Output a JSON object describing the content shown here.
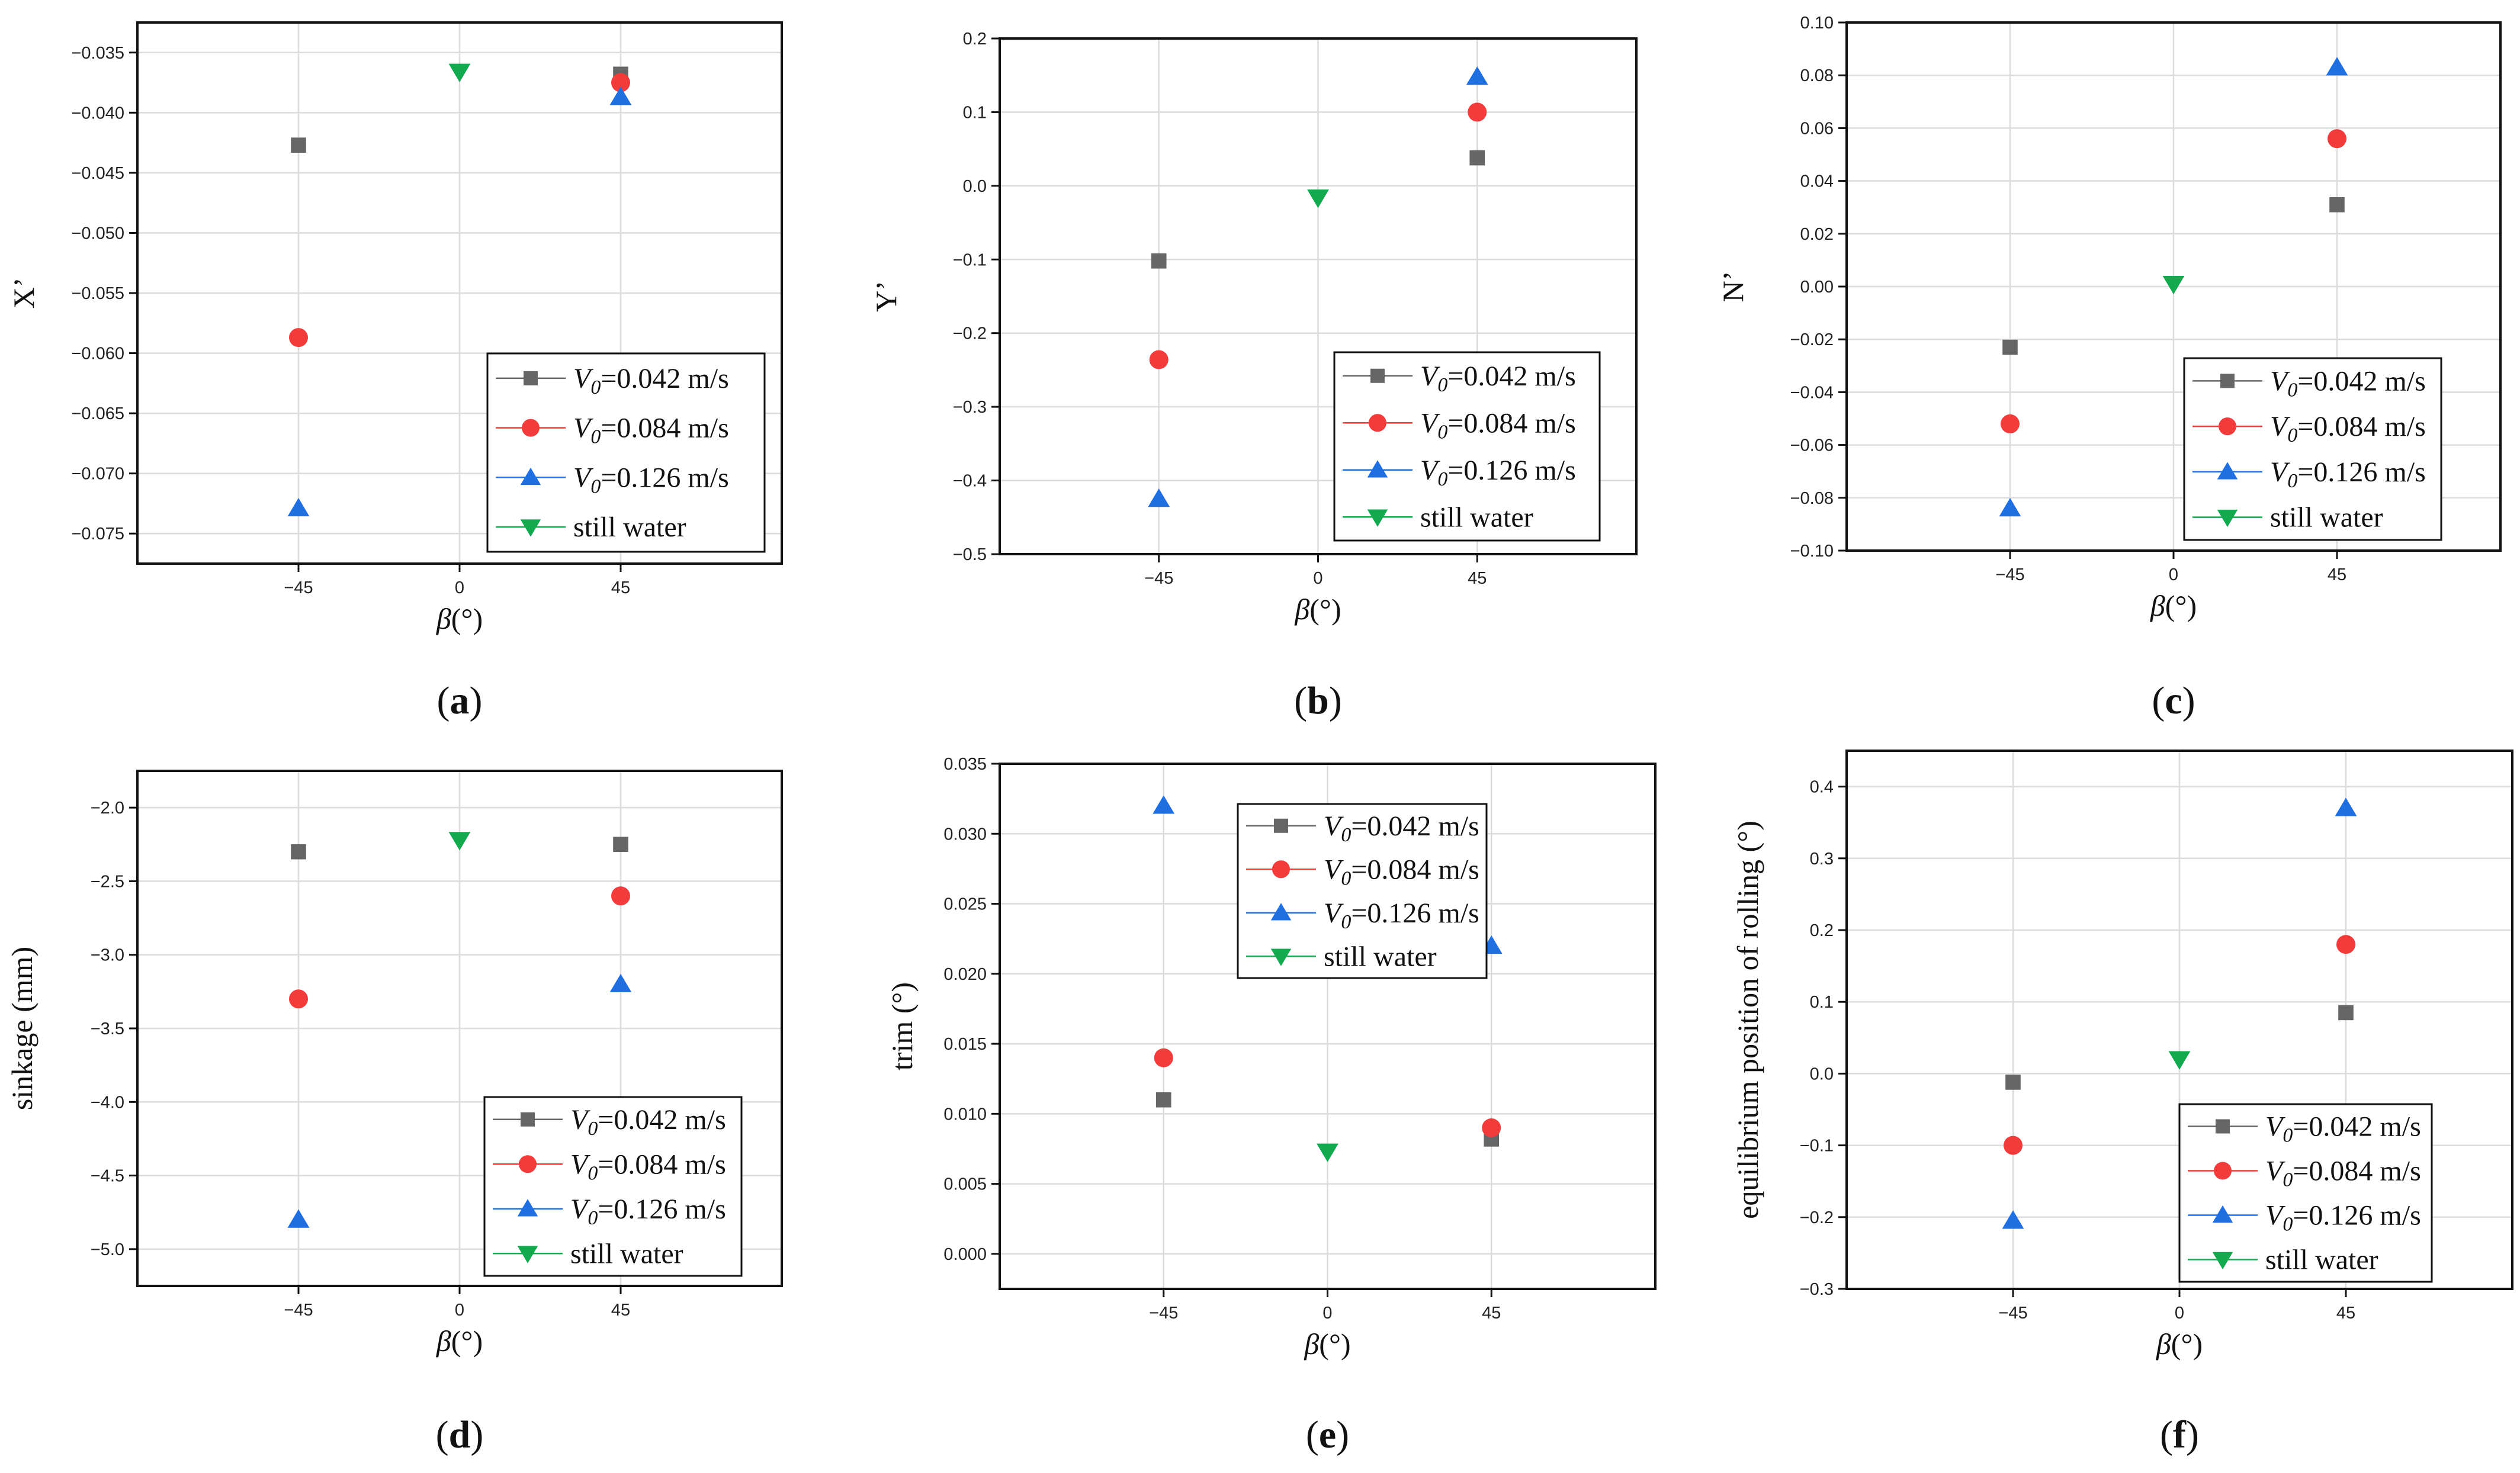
{
  "figure": {
    "beta_symbol": "β",
    "beta_unit": "(°)",
    "legend_v_symbol": "V",
    "legend_v_subscript": "0",
    "series_styles": [
      {
        "marker": "square",
        "color": "#666666"
      },
      {
        "marker": "circle",
        "color": "#f23b3b"
      },
      {
        "marker": "triangle-up",
        "color": "#1f6fe0"
      },
      {
        "marker": "triangle-down",
        "color": "#12a94f"
      }
    ],
    "grid_color": "#dcdcdc"
  },
  "chart_data": [
    {
      "panel": "(a)",
      "panel_letter": "a",
      "type": "scatter",
      "ylabel": "X’",
      "xlabel": "β(°)",
      "x": [
        -45,
        0,
        45
      ],
      "xlim": [
        -90,
        90
      ],
      "ylim": [
        -0.0775,
        -0.0325
      ],
      "yticks": [
        -0.035,
        -0.04,
        -0.045,
        -0.05,
        -0.055,
        -0.06,
        -0.065,
        -0.07,
        -0.075
      ],
      "ytick_labels": [
        "−0.035",
        "−0.040",
        "−0.045",
        "−0.050",
        "−0.055",
        "−0.060",
        "−0.065",
        "−0.070",
        "−0.075"
      ],
      "xtick_labels": [
        "−45",
        "0",
        "45"
      ],
      "legend_position": "bottom-right",
      "series": [
        {
          "name": "V0=0.042 m/s",
          "legend_value": "=0.042 m/s",
          "points": [
            [
              -45,
              -0.0427
            ],
            [
              45,
              -0.0368
            ]
          ]
        },
        {
          "name": "V0=0.084 m/s",
          "legend_value": "=0.084 m/s",
          "points": [
            [
              -45,
              -0.0587
            ],
            [
              45,
              -0.0375
            ]
          ]
        },
        {
          "name": "V0=0.126 m/s",
          "legend_value": "=0.126 m/s",
          "points": [
            [
              -45,
              -0.0729
            ],
            [
              45,
              -0.0387
            ]
          ]
        },
        {
          "name": "still water",
          "legend_value": "still water",
          "points": [
            [
              0,
              -0.0366
            ]
          ]
        }
      ]
    },
    {
      "panel": "(b)",
      "panel_letter": "b",
      "type": "scatter",
      "ylabel": "Y’",
      "xlabel": "β(°)",
      "x": [
        -45,
        0,
        45
      ],
      "xlim": [
        -90,
        90
      ],
      "ylim": [
        -0.5,
        0.2
      ],
      "yticks": [
        0.2,
        0.1,
        0,
        -0.1,
        -0.2,
        -0.3,
        -0.4,
        -0.5
      ],
      "ytick_labels": [
        "0.2",
        "0.1",
        "0.0",
        "−0.1",
        "−0.2",
        "−0.3",
        "−0.4",
        "−0.5"
      ],
      "xtick_labels": [
        "−45",
        "0",
        "45"
      ],
      "legend_position": "bottom-right",
      "series": [
        {
          "name": "V0=0.042 m/s",
          "legend_value": "=0.042 m/s",
          "points": [
            [
              -45,
              -0.102
            ],
            [
              45,
              0.038
            ]
          ]
        },
        {
          "name": "V0=0.084 m/s",
          "legend_value": "=0.084 m/s",
          "points": [
            [
              -45,
              -0.236
            ],
            [
              45,
              0.1
            ]
          ]
        },
        {
          "name": "V0=0.126 m/s",
          "legend_value": "=0.126 m/s",
          "points": [
            [
              -45,
              -0.425
            ],
            [
              45,
              0.148
            ]
          ]
        },
        {
          "name": "still water",
          "legend_value": "still water",
          "points": [
            [
              0,
              -0.016
            ]
          ]
        }
      ]
    },
    {
      "panel": "(c)",
      "panel_letter": "c",
      "type": "scatter",
      "ylabel": "N’",
      "xlabel": "β(°)",
      "x": [
        -45,
        0,
        45
      ],
      "xlim": [
        -90,
        90
      ],
      "ylim": [
        -0.1,
        0.1
      ],
      "yticks": [
        0.1,
        0.08,
        0.06,
        0.04,
        0.02,
        0,
        -0.02,
        -0.04,
        -0.06,
        -0.08,
        -0.1
      ],
      "ytick_labels": [
        "0.10",
        "0.08",
        "0.06",
        "0.04",
        "0.02",
        "0.00",
        "−0.02",
        "−0.04",
        "−0.06",
        "−0.08",
        "−0.10"
      ],
      "xtick_labels": [
        "−45",
        "0",
        "45"
      ],
      "legend_position": "bottom-right",
      "series": [
        {
          "name": "V0=0.042 m/s",
          "legend_value": "=0.042 m/s",
          "points": [
            [
              -45,
              -0.023
            ],
            [
              45,
              0.031
            ]
          ]
        },
        {
          "name": "V0=0.084 m/s",
          "legend_value": "=0.084 m/s",
          "points": [
            [
              -45,
              -0.052
            ],
            [
              45,
              0.056
            ]
          ]
        },
        {
          "name": "V0=0.126 m/s",
          "legend_value": "=0.126 m/s",
          "points": [
            [
              -45,
              -0.084
            ],
            [
              45,
              0.083
            ]
          ]
        },
        {
          "name": "still water",
          "legend_value": "still water",
          "points": [
            [
              0,
              0.001
            ]
          ]
        }
      ]
    },
    {
      "panel": "(d)",
      "panel_letter": "d",
      "type": "scatter",
      "ylabel": "sinkage (mm)",
      "xlabel": "β(°)",
      "x": [
        -45,
        0,
        45
      ],
      "xlim": [
        -90,
        90
      ],
      "ylim": [
        -5.25,
        -1.75
      ],
      "yticks": [
        -2,
        -2.5,
        -3,
        -3.5,
        -4,
        -4.5,
        -5
      ],
      "ytick_labels": [
        "−2.0",
        "−2.5",
        "−3.0",
        "−3.5",
        "−4.0",
        "−4.5",
        "−5.0"
      ],
      "xtick_labels": [
        "−45",
        "0",
        "45"
      ],
      "legend_position": "bottom-right",
      "series": [
        {
          "name": "V0=0.042 m/s",
          "legend_value": "=0.042 m/s",
          "points": [
            [
              -45,
              -2.3
            ],
            [
              45,
              -2.25
            ]
          ]
        },
        {
          "name": "V0=0.084 m/s",
          "legend_value": "=0.084 m/s",
          "points": [
            [
              -45,
              -3.3
            ],
            [
              45,
              -2.6
            ]
          ]
        },
        {
          "name": "V0=0.126 m/s",
          "legend_value": "=0.126 m/s",
          "points": [
            [
              -45,
              -4.8
            ],
            [
              45,
              -3.2
            ]
          ]
        },
        {
          "name": "still water",
          "legend_value": "still water",
          "points": [
            [
              0,
              -2.22
            ]
          ]
        }
      ]
    },
    {
      "panel": "(e)",
      "panel_letter": "e",
      "type": "scatter",
      "ylabel": "trim (°)",
      "xlabel": "β(°)",
      "x": [
        -45,
        0,
        45
      ],
      "xlim": [
        -90,
        90
      ],
      "ylim": [
        -0.0025,
        0.035
      ],
      "yticks": [
        0.035,
        0.03,
        0.025,
        0.02,
        0.015,
        0.01,
        0.005,
        0
      ],
      "ytick_labels": [
        "0.035",
        "0.030",
        "0.025",
        "0.020",
        "0.015",
        "0.010",
        "0.005",
        "0.000"
      ],
      "xtick_labels": [
        "−45",
        "0",
        "45"
      ],
      "legend_position": "top-center",
      "series": [
        {
          "name": "V0=0.042 m/s",
          "legend_value": "=0.042 m/s",
          "points": [
            [
              -45,
              0.011
            ],
            [
              45,
              0.0082
            ]
          ]
        },
        {
          "name": "V0=0.084 m/s",
          "legend_value": "=0.084 m/s",
          "points": [
            [
              -45,
              0.014
            ],
            [
              45,
              0.009
            ]
          ]
        },
        {
          "name": "V0=0.126 m/s",
          "legend_value": "=0.126 m/s",
          "points": [
            [
              -45,
              0.032
            ],
            [
              45,
              0.022
            ]
          ]
        },
        {
          "name": "still water",
          "legend_value": "still water",
          "points": [
            [
              0,
              0.0073
            ]
          ]
        }
      ]
    },
    {
      "panel": "(f)",
      "panel_letter": "f",
      "type": "scatter",
      "ylabel": "equilibrium position of rolling (°)",
      "xlabel": "β(°)",
      "x": [
        -45,
        0,
        45
      ],
      "xlim": [
        -90,
        90
      ],
      "ylim": [
        -0.3,
        0.45
      ],
      "yticks": [
        0.4,
        0.3,
        0.2,
        0.1,
        0,
        -0.1,
        -0.2,
        -0.3
      ],
      "ytick_labels": [
        "0.4",
        "0.3",
        "0.2",
        "0.1",
        "0.0",
        "−0.1",
        "−0.2",
        "−0.3"
      ],
      "xtick_labels": [
        "−45",
        "0",
        "45"
      ],
      "legend_position": "bottom-right",
      "series": [
        {
          "name": "V0=0.042 m/s",
          "legend_value": "=0.042 m/s",
          "points": [
            [
              -45,
              -0.012
            ],
            [
              45,
              0.085
            ]
          ]
        },
        {
          "name": "V0=0.084 m/s",
          "legend_value": "=0.084 m/s",
          "points": [
            [
              -45,
              -0.1
            ],
            [
              45,
              0.18
            ]
          ]
        },
        {
          "name": "V0=0.126 m/s",
          "legend_value": "=0.126 m/s",
          "points": [
            [
              -45,
              -0.205
            ],
            [
              45,
              0.37
            ]
          ]
        },
        {
          "name": "still water",
          "legend_value": "still water",
          "points": [
            [
              0,
              0.02
            ]
          ]
        }
      ]
    }
  ]
}
